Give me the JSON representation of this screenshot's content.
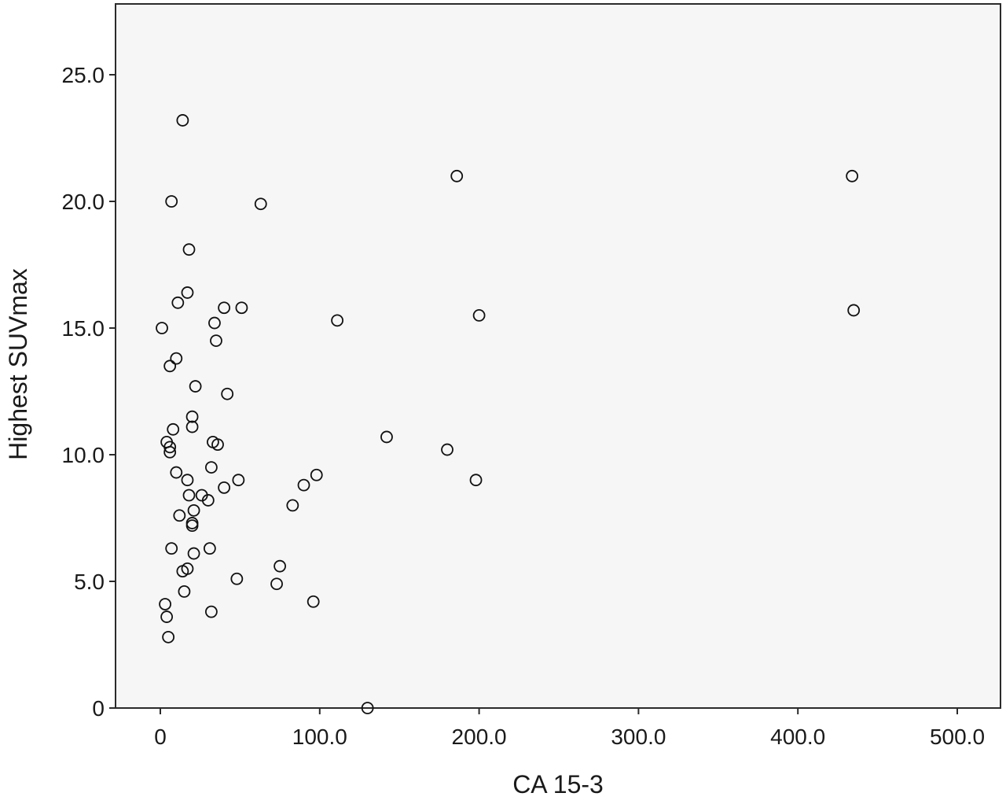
{
  "chart_data": {
    "type": "scatter",
    "xlabel": "CA 15-3",
    "ylabel": "Highest SUVmax",
    "xlim": [
      -28,
      528
    ],
    "ylim": [
      0,
      27.9
    ],
    "xticks": [
      0,
      100,
      200,
      300,
      400,
      500
    ],
    "xtick_labels": [
      "0",
      "100.0",
      "200.0",
      "300.0",
      "400.0",
      "500.0"
    ],
    "yticks": [
      0,
      5,
      10,
      15,
      20,
      25
    ],
    "ytick_labels": [
      "0",
      "5.0",
      "10.0",
      "15.0",
      "20.0",
      "25.0"
    ],
    "grid": false,
    "colors": {
      "plot_background": "#f6f6f6",
      "marker_edge": "#111111",
      "axis": "#2b2b2b"
    },
    "points": [
      [
        14,
        23.2
      ],
      [
        7,
        20.0
      ],
      [
        63,
        19.9
      ],
      [
        186,
        21.0
      ],
      [
        434,
        21.0
      ],
      [
        18,
        18.1
      ],
      [
        17,
        16.4
      ],
      [
        11,
        16.0
      ],
      [
        40,
        15.8
      ],
      [
        51,
        15.8
      ],
      [
        34,
        15.2
      ],
      [
        1,
        15.0
      ],
      [
        111,
        15.3
      ],
      [
        200,
        15.5
      ],
      [
        435,
        15.7
      ],
      [
        35,
        14.5
      ],
      [
        10,
        13.8
      ],
      [
        6,
        13.5
      ],
      [
        22,
        12.7
      ],
      [
        42,
        12.4
      ],
      [
        20,
        11.5
      ],
      [
        20,
        11.1
      ],
      [
        8,
        11.0
      ],
      [
        142,
        10.7
      ],
      [
        4,
        10.5
      ],
      [
        33,
        10.5
      ],
      [
        36,
        10.4
      ],
      [
        6,
        10.3
      ],
      [
        6,
        10.1
      ],
      [
        180,
        10.2
      ],
      [
        10,
        9.3
      ],
      [
        32,
        9.5
      ],
      [
        17,
        9.0
      ],
      [
        49,
        9.0
      ],
      [
        98,
        9.2
      ],
      [
        90,
        8.8
      ],
      [
        198,
        9.0
      ],
      [
        40,
        8.7
      ],
      [
        18,
        8.4
      ],
      [
        26,
        8.4
      ],
      [
        30,
        8.2
      ],
      [
        83,
        8.0
      ],
      [
        21,
        7.8
      ],
      [
        12,
        7.6
      ],
      [
        20,
        7.3
      ],
      [
        20,
        7.2
      ],
      [
        7,
        6.3
      ],
      [
        31,
        6.3
      ],
      [
        21,
        6.1
      ],
      [
        75,
        5.6
      ],
      [
        17,
        5.5
      ],
      [
        14,
        5.4
      ],
      [
        48,
        5.1
      ],
      [
        73,
        4.9
      ],
      [
        15,
        4.6
      ],
      [
        96,
        4.2
      ],
      [
        3,
        4.1
      ],
      [
        32,
        3.8
      ],
      [
        4,
        3.6
      ],
      [
        5,
        2.8
      ],
      [
        130,
        0.0
      ]
    ]
  }
}
